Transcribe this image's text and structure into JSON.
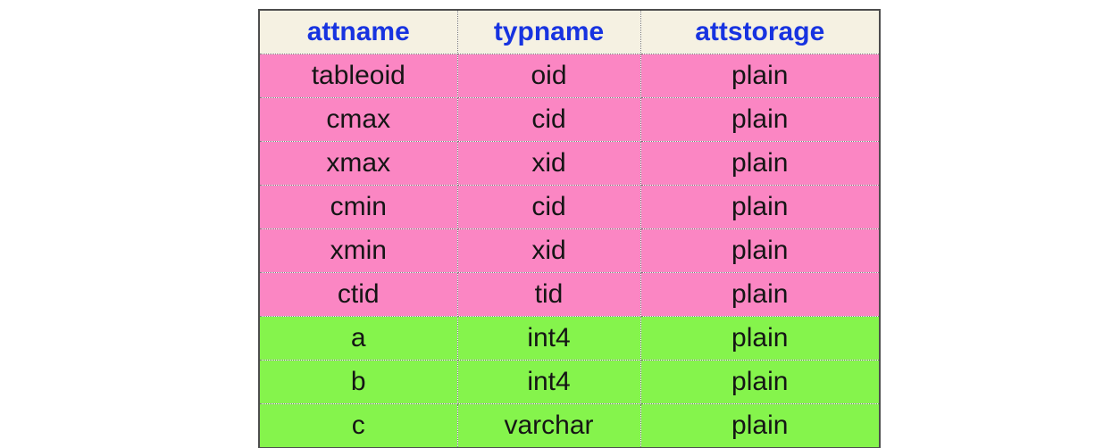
{
  "chart_data": {
    "type": "table",
    "columns": [
      "attname",
      "typname",
      "attstorage"
    ],
    "rows": [
      [
        "tableoid",
        "oid",
        "plain"
      ],
      [
        "cmax",
        "cid",
        "plain"
      ],
      [
        "xmax",
        "xid",
        "plain"
      ],
      [
        "cmin",
        "cid",
        "plain"
      ],
      [
        "xmin",
        "xid",
        "plain"
      ],
      [
        "ctid",
        "tid",
        "plain"
      ],
      [
        "a",
        "int4",
        "plain"
      ],
      [
        "b",
        "int4",
        "plain"
      ],
      [
        "c",
        "varchar",
        "plain"
      ]
    ],
    "row_colors": [
      "#fb86c3",
      "#fb86c3",
      "#fb86c3",
      "#fb86c3",
      "#fb86c3",
      "#fb86c3",
      "#85f44c",
      "#85f44c",
      "#85f44c"
    ],
    "colors": {
      "header_bg": "#f5f1e2",
      "header_text": "#1733e0",
      "body_text": "#151515",
      "outer_border": "#4d4d4d",
      "grid_line": "#7a7a7a",
      "pink_group": "#fb86c3",
      "green_group": "#85f44c"
    },
    "grid": "dotted",
    "legend": "off"
  }
}
